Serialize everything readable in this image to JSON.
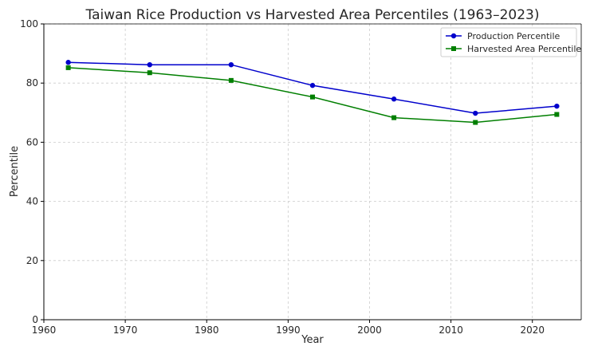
{
  "chart_data": {
    "type": "line",
    "title": "Taiwan Rice Production vs Harvested Area Percentiles (1963–2023)",
    "xlabel": "Year",
    "ylabel": "Percentile",
    "xlim": [
      1960,
      2026
    ],
    "ylim": [
      0,
      100
    ],
    "xticks": [
      1960,
      1970,
      1980,
      1990,
      2000,
      2010,
      2020
    ],
    "yticks": [
      0,
      20,
      40,
      60,
      80,
      100
    ],
    "grid": true,
    "legend_position": "top-right",
    "x": [
      1963,
      1973,
      1983,
      1993,
      2003,
      2013,
      2023
    ],
    "series": [
      {
        "name": "Production Percentile",
        "color": "#0000cc",
        "marker": "circle",
        "values": [
          87.0,
          86.2,
          86.2,
          79.2,
          74.6,
          69.8,
          72.2
        ]
      },
      {
        "name": "Harvested Area Percentile",
        "color": "#007f00",
        "marker": "square",
        "values": [
          85.2,
          83.5,
          80.9,
          75.3,
          68.3,
          66.7,
          69.4
        ]
      }
    ]
  }
}
